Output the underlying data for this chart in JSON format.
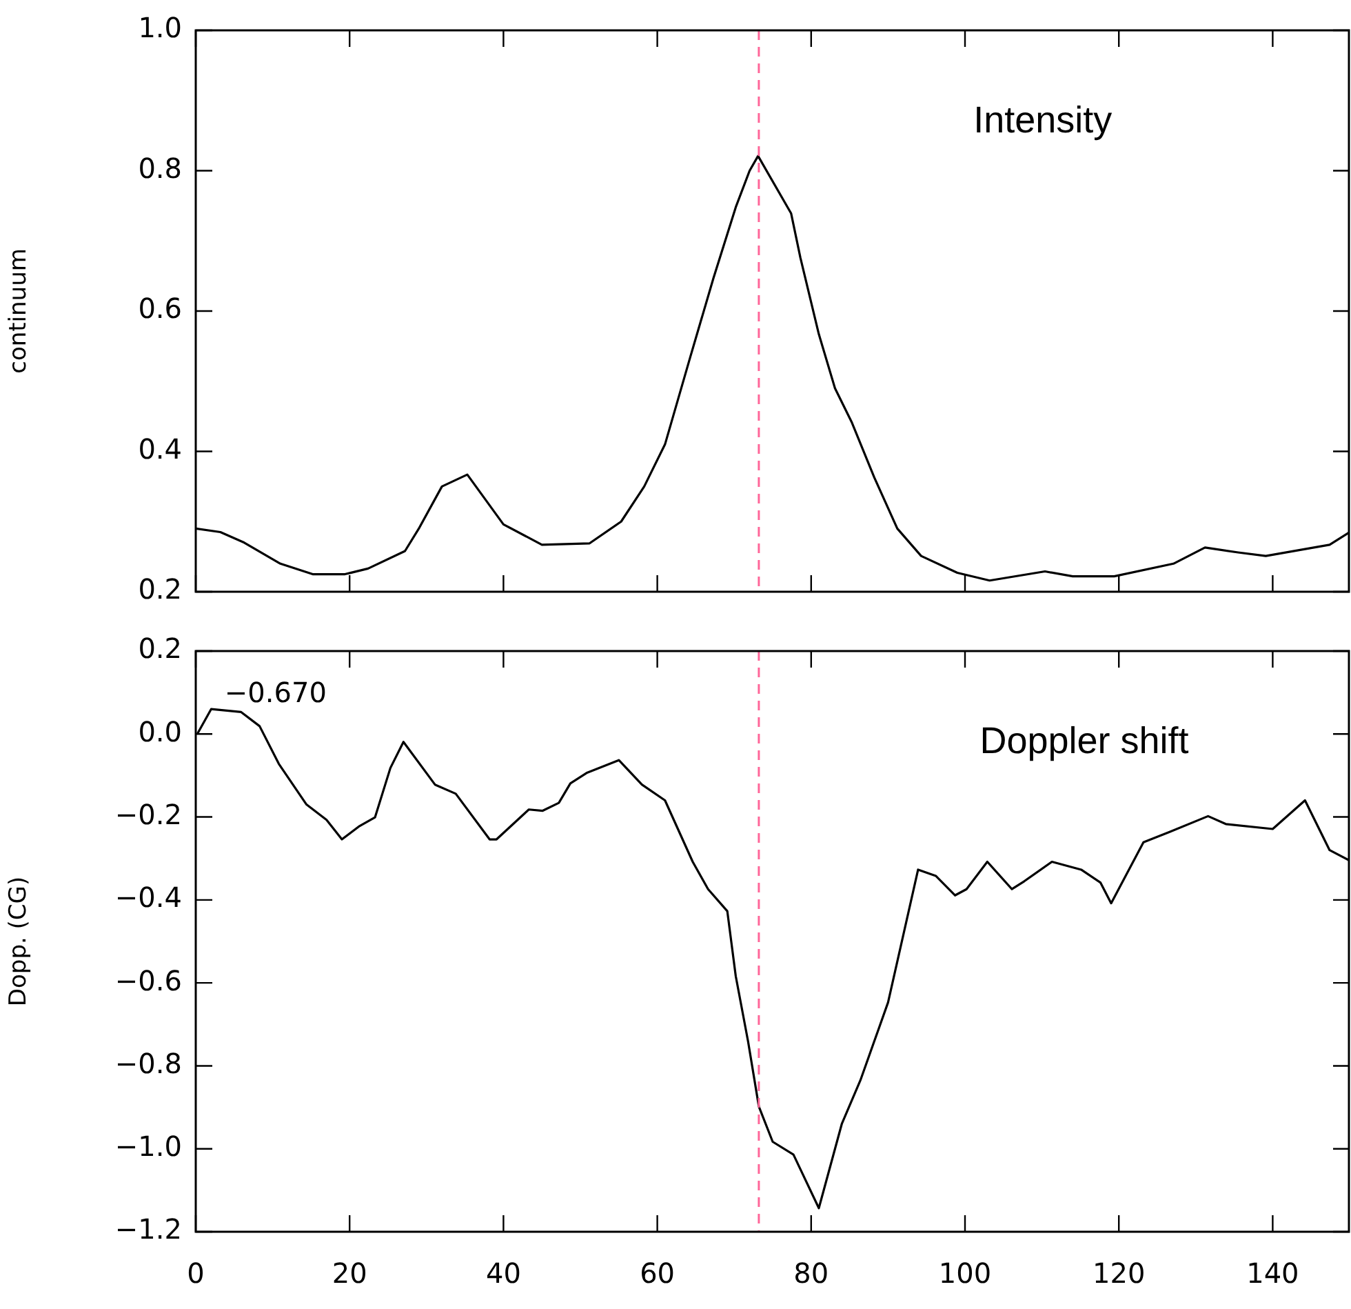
{
  "chart_data": [
    {
      "type": "line",
      "ylabel": "continuum",
      "annotations": [
        "Intensity"
      ],
      "tick_labels": "y",
      "color": "#000000",
      "x": [
        0,
        3.2,
        6.3,
        11,
        15.2,
        19.4,
        22.4,
        27.2,
        29,
        32,
        35.3,
        40,
        45,
        51.2,
        55.3,
        58.3,
        61,
        64.3,
        67.3,
        70.2,
        72,
        73.1,
        77.4,
        78.6,
        81,
        83.1,
        85.3,
        88.2,
        91.2,
        94.3,
        99,
        103.2,
        110.4,
        114,
        119.4,
        127.1,
        131.2,
        135.5,
        139.1,
        147.4,
        150
      ],
      "values": [
        0.29,
        0.285,
        0.27,
        0.24,
        0.225,
        0.225,
        0.233,
        0.258,
        0.29,
        0.35,
        0.367,
        0.296,
        0.267,
        0.269,
        0.3,
        0.35,
        0.41,
        0.535,
        0.647,
        0.748,
        0.8,
        0.821,
        0.739,
        0.676,
        0.567,
        0.49,
        0.441,
        0.363,
        0.29,
        0.251,
        0.227,
        0.216,
        0.229,
        0.222,
        0.222,
        0.24,
        0.263,
        0.256,
        0.251,
        0.267,
        0.285
      ],
      "xlim": [
        0,
        150
      ],
      "xticks": [
        0,
        20,
        40,
        60,
        80,
        100,
        120,
        140
      ],
      "ylim": [
        0.2,
        1.0
      ],
      "yticks": [
        {
          "value": 0.2,
          "label": "0.2"
        },
        {
          "value": 0.4,
          "label": "0.4"
        },
        {
          "value": 0.6,
          "label": "0.6"
        },
        {
          "value": 0.8,
          "label": "0.8"
        },
        {
          "value": 1.0,
          "label": "1.0"
        }
      ],
      "ref_lines": [
        {
          "axis": "x",
          "value": 73.2,
          "color": "#ff6699",
          "line_style": "dashed"
        }
      ]
    },
    {
      "type": "line",
      "ylabel": "Dopp. (CG)",
      "annotations": [
        "−0.670",
        "Doppler shift"
      ],
      "color": "#000000",
      "x": [
        0.2,
        2,
        5.9,
        8.3,
        10.8,
        14.4,
        17,
        19,
        21.2,
        23.3,
        25.3,
        27,
        31.1,
        33.8,
        38.2,
        39.1,
        43.3,
        45.1,
        47.2,
        48.7,
        50.8,
        55,
        58,
        61,
        64.6,
        66.6,
        69.1,
        70.2,
        71.8,
        73.2,
        75,
        77.7,
        81,
        84,
        86.4,
        90,
        93.9,
        96.2,
        98.7,
        100.2,
        102.9,
        106.1,
        107.7,
        111.3,
        115.1,
        117.6,
        119,
        123.2,
        126.6,
        131.6,
        133.9,
        140,
        144.2,
        147.4,
        150
      ],
      "values": [
        0.0,
        0.06,
        0.053,
        0.019,
        -0.072,
        -0.17,
        -0.207,
        -0.254,
        -0.223,
        -0.201,
        -0.082,
        -0.019,
        -0.122,
        -0.144,
        -0.254,
        -0.254,
        -0.182,
        -0.185,
        -0.166,
        -0.119,
        -0.094,
        -0.063,
        -0.122,
        -0.16,
        -0.308,
        -0.374,
        -0.427,
        -0.584,
        -0.741,
        -0.898,
        -0.983,
        -1.014,
        -1.143,
        -0.939,
        -0.835,
        -0.647,
        -0.327,
        -0.342,
        -0.389,
        -0.374,
        -0.308,
        -0.374,
        -0.355,
        -0.308,
        -0.327,
        -0.358,
        -0.408,
        -0.261,
        -0.236,
        -0.198,
        -0.217,
        -0.229,
        -0.16,
        -0.28,
        -0.305
      ],
      "xlim": [
        0,
        150
      ],
      "xticks": [
        0,
        20,
        40,
        60,
        80,
        100,
        120,
        140
      ],
      "ylim": [
        -1.2,
        0.2
      ],
      "yticks": [
        {
          "value": -1.2,
          "label": "−1.2"
        },
        {
          "value": -1.0,
          "label": "−1.0"
        },
        {
          "value": -0.8,
          "label": "−0.8"
        },
        {
          "value": -0.6,
          "label": "−0.6"
        },
        {
          "value": -0.4,
          "label": "−0.4"
        },
        {
          "value": -0.2,
          "label": "−0.2"
        },
        {
          "value": 0,
          "label": "0.0"
        },
        {
          "value": 0.2,
          "label": "0.2"
        }
      ],
      "ref_lines": [
        {
          "axis": "x",
          "value": 73.2,
          "color": "#ff6699",
          "line_style": "dashed"
        }
      ]
    }
  ]
}
